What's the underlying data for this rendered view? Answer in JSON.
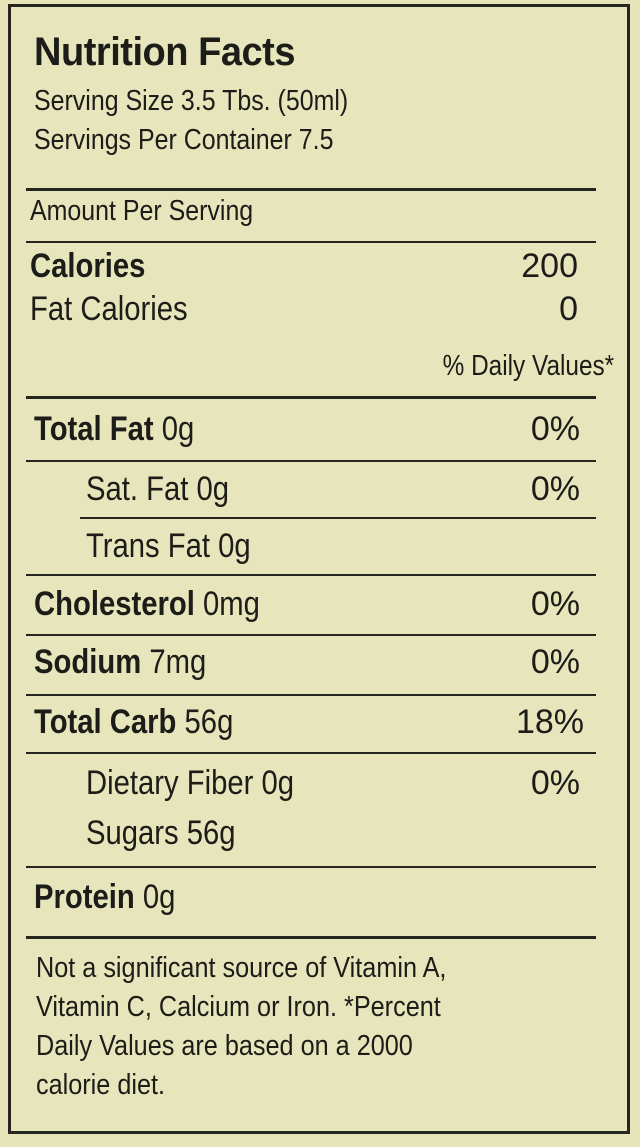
{
  "title": "Nutrition Facts",
  "serving_size": "Serving Size 3.5 Tbs. (50ml)",
  "servings_per_container": "Servings Per Container 7.5",
  "amount_per_serving": "Amount Per Serving",
  "calories": {
    "label": "Calories",
    "value": "200"
  },
  "fat_calories": {
    "label": "Fat Calories",
    "value": "0"
  },
  "daily_values_header": "% Daily Values*",
  "nutrients": {
    "total_fat": {
      "name": "Total Fat",
      "amount": " 0g",
      "dv": "0%"
    },
    "sat_fat": {
      "name": "Sat. Fat 0g",
      "dv": "0%"
    },
    "trans_fat": {
      "name": "Trans Fat 0g"
    },
    "cholesterol": {
      "name": "Cholesterol",
      "amount": " 0mg",
      "dv": "0%"
    },
    "sodium": {
      "name": "Sodium",
      "amount": " 7mg",
      "dv": "0%"
    },
    "total_carb": {
      "name": "Total Carb",
      "amount": " 56g",
      "dv": "18%"
    },
    "dietary_fiber": {
      "name": "Dietary Fiber 0g",
      "dv": "0%"
    },
    "sugars": {
      "name": "Sugars 56g"
    },
    "protein": {
      "name": "Protein",
      "amount": " 0g"
    }
  },
  "footnote": [
    "Not a significant source of Vitamin A,",
    "Vitamin C, Calcium or Iron. *Percent",
    "Daily Values are based on a 2000",
    "calorie diet."
  ]
}
